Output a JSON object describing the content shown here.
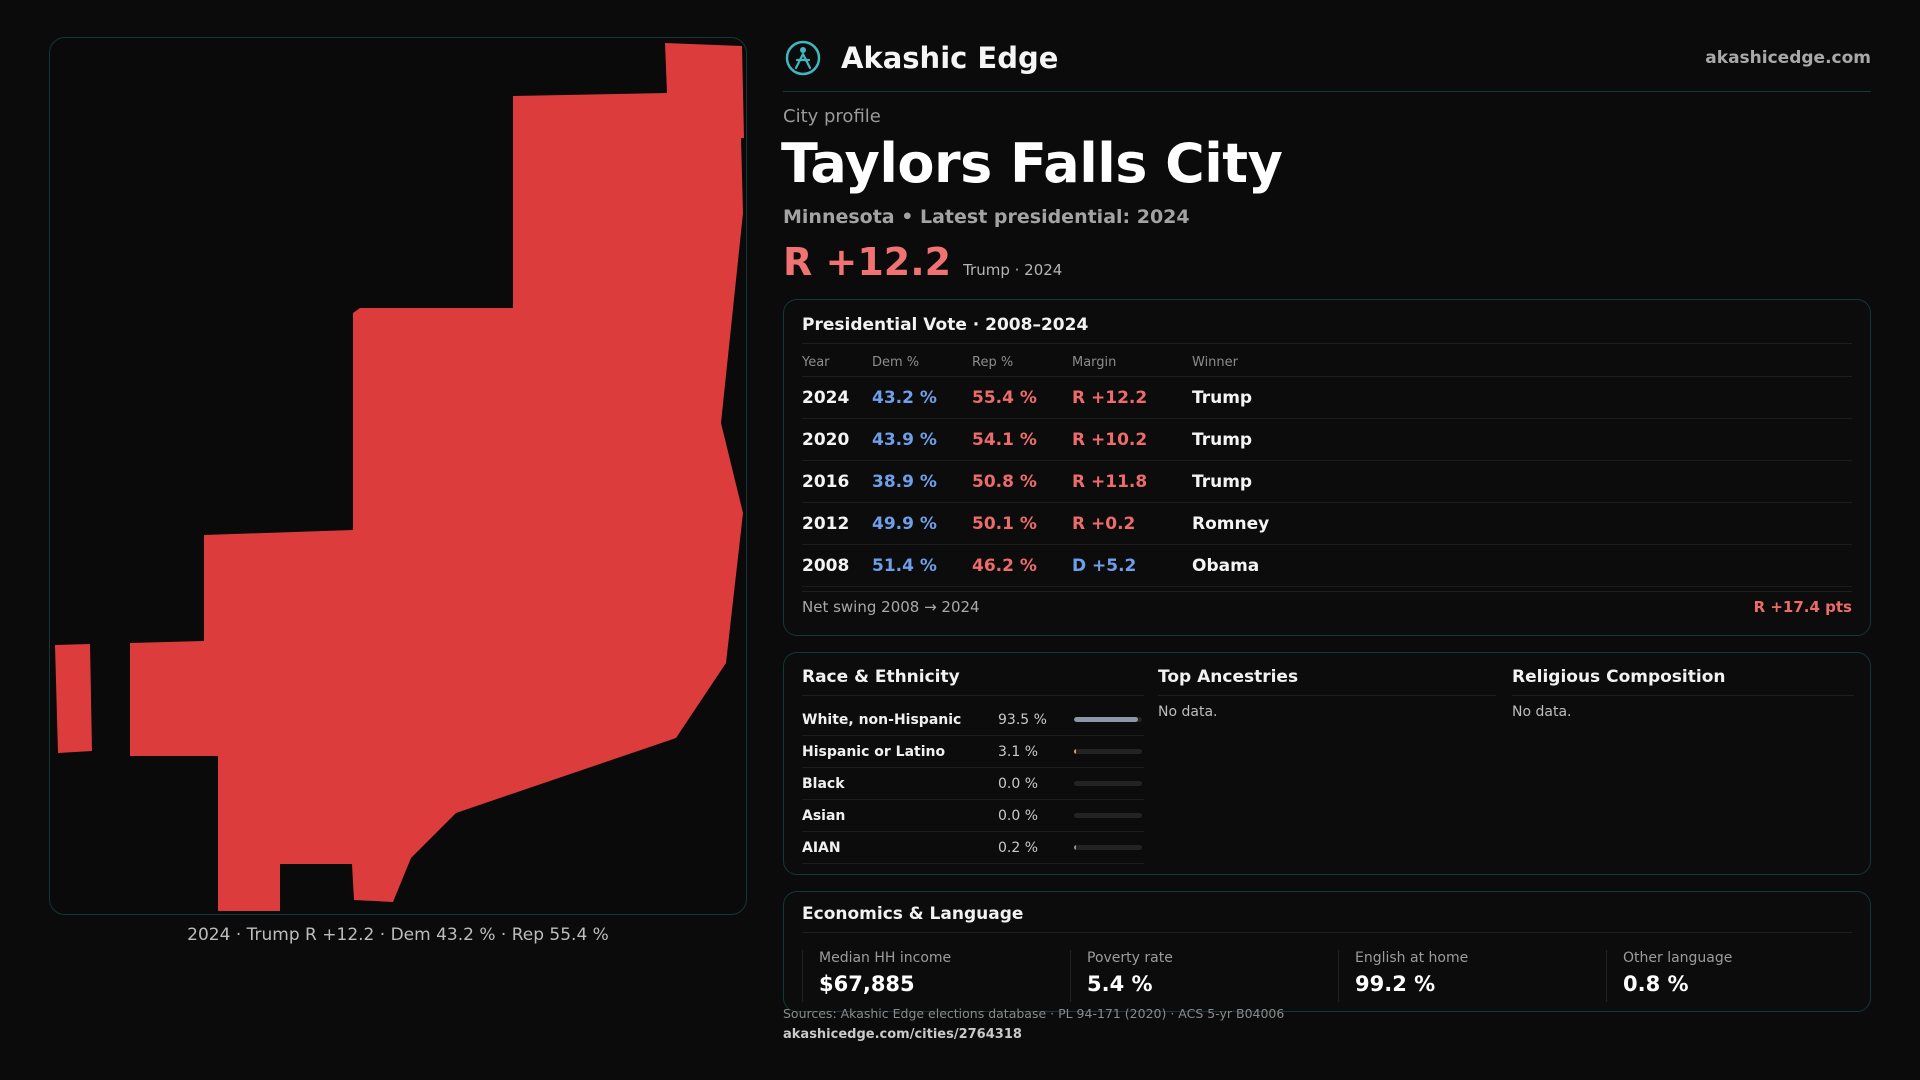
{
  "map": {
    "fill_color": "#dd3c3c",
    "caption": "2024 · Trump R +12.2 · Dem 43.2 % · Rep 55.4 %"
  },
  "brand": {
    "name": "Akashic Edge",
    "url": "akashicedge.com",
    "logo_icon": "compass-people-icon",
    "accent_color": "#3fb6c0"
  },
  "profile": {
    "eyebrow": "City profile",
    "title": "Taylors  Falls City",
    "subtitle": "Minnesota • Latest presidential: 2024",
    "headline_margin": "R +12.2",
    "headline_note": "Trump · 2024"
  },
  "vote": {
    "title": "Presidential Vote · 2008–2024",
    "headers": {
      "year": "Year",
      "dem": "Dem %",
      "rep": "Rep %",
      "margin": "Margin",
      "winner": "Winner"
    },
    "rows": [
      {
        "year": "2024",
        "dem": "43.2 %",
        "rep": "55.4 %",
        "margin": "R +12.2",
        "winner": "Trump"
      },
      {
        "year": "2020",
        "dem": "43.9 %",
        "rep": "54.1 %",
        "margin": "R +10.2",
        "winner": "Trump"
      },
      {
        "year": "2016",
        "dem": "38.9 %",
        "rep": "50.8 %",
        "margin": "R +11.8",
        "winner": "Trump"
      },
      {
        "year": "2012",
        "dem": "49.9 %",
        "rep": "50.1 %",
        "margin": "R +0.2",
        "winner": "Romney"
      },
      {
        "year": "2008",
        "dem": "51.4 %",
        "rep": "46.2 %",
        "margin": "D +5.2",
        "winner": "Obama"
      }
    ],
    "footer_label": "Net swing 2008 → 2024",
    "footer_value": "R +17.4 pts",
    "dem_color": "#6f9fe9",
    "rep_color": "#ee6b6b"
  },
  "race": {
    "title": "Race & Ethnicity",
    "rows": [
      {
        "label": "White, non-Hispanic",
        "value": "93.5 %",
        "share": 0.935,
        "bar_color": "#8d96a8"
      },
      {
        "label": "Hispanic or Latino",
        "value": "3.1 %",
        "share": 0.031,
        "bar_color": "#e0a15a"
      },
      {
        "label": "Black",
        "value": "0.0 %",
        "share": 0.0,
        "bar_color": "#8d96a8"
      },
      {
        "label": "Asian",
        "value": "0.0 %",
        "share": 0.0,
        "bar_color": "#8d96a8"
      },
      {
        "label": "AIAN",
        "value": "0.2 %",
        "share": 0.002,
        "bar_color": "#8d96a8"
      }
    ]
  },
  "ancestries": {
    "title": "Top Ancestries",
    "empty": "No data."
  },
  "religion": {
    "title": "Religious Composition",
    "empty": "No data."
  },
  "econ": {
    "title": "Economics & Language",
    "stats": [
      {
        "label": "Median HH income",
        "value": "$67,885"
      },
      {
        "label": "Poverty rate",
        "value": "5.4 %"
      },
      {
        "label": "English at home",
        "value": "99.2 %"
      },
      {
        "label": "Other language",
        "value": "0.8 %"
      }
    ]
  },
  "footer": {
    "sources": "Sources: Akashic Edge elections database · PL 94-171 (2020) · ACS 5-yr B04006",
    "url": "akashicedge.com/cities/2764318"
  }
}
